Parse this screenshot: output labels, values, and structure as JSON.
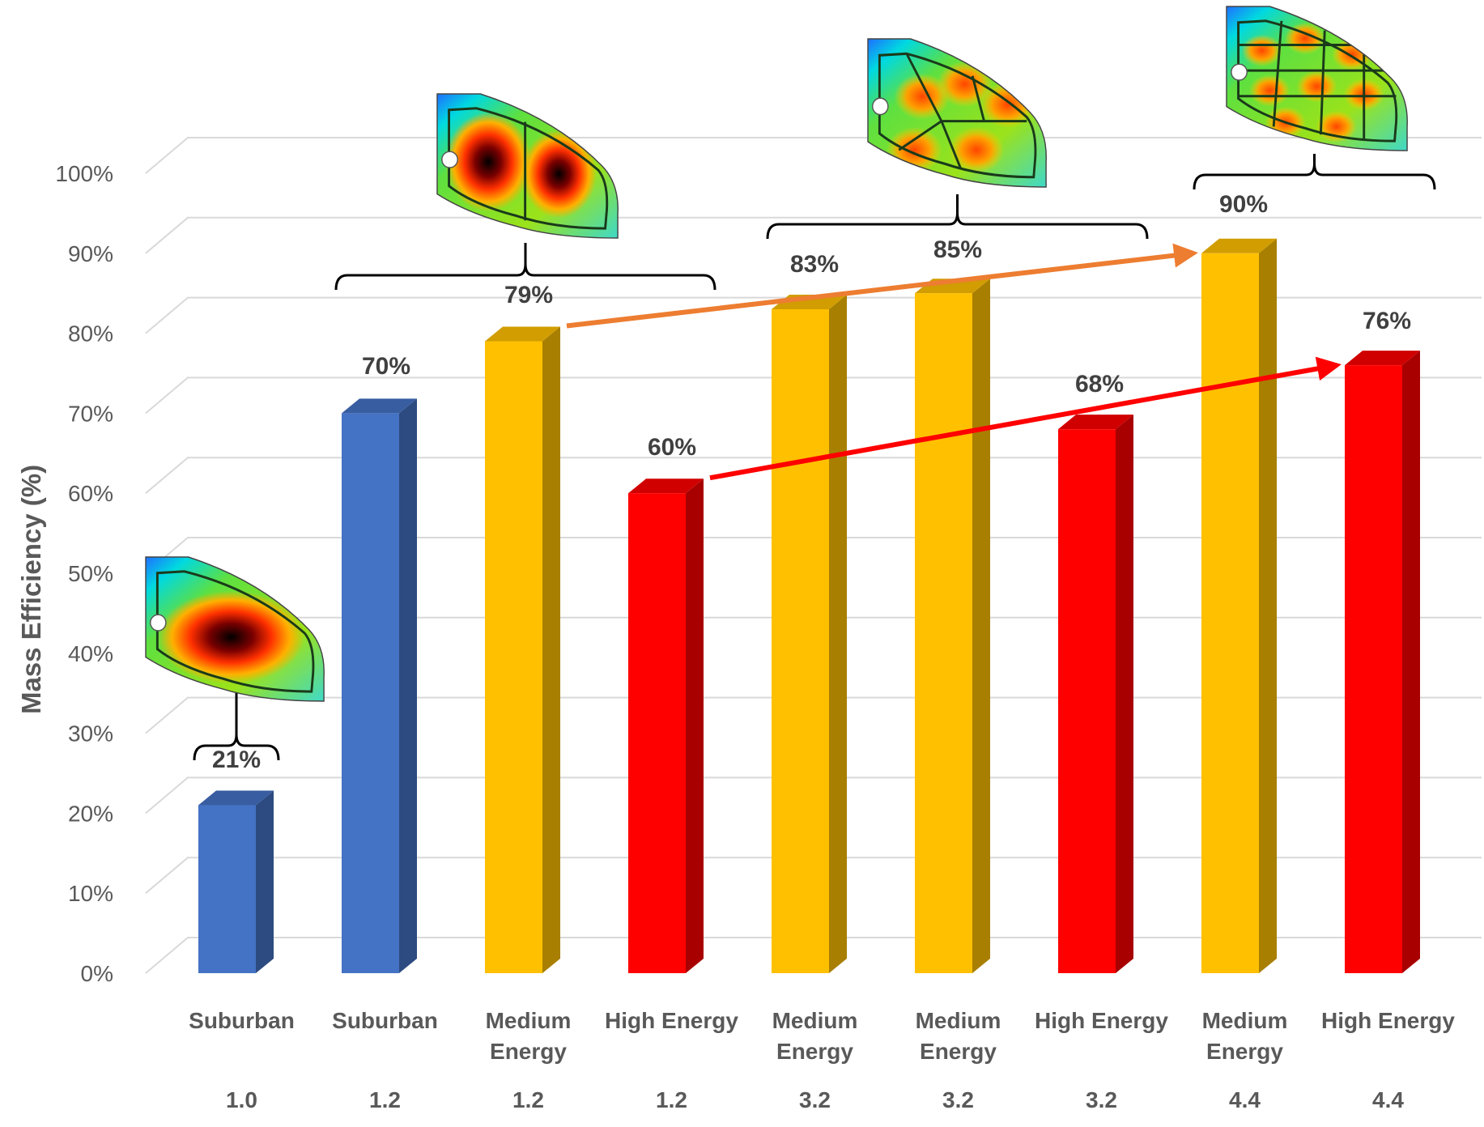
{
  "chart_data": {
    "type": "bar",
    "title": "",
    "ylabel": "Mass Efficiency (%)",
    "xlabel": "",
    "ylim": [
      0,
      100
    ],
    "yticks": [
      "0%",
      "10%",
      "20%",
      "30%",
      "40%",
      "50%",
      "60%",
      "70%",
      "80%",
      "90%",
      "100%"
    ],
    "grid": true,
    "bar_style": "3d-column",
    "categories": [
      {
        "name": "Suburban",
        "sub": "1.0"
      },
      {
        "name": "Suburban",
        "sub": "1.2"
      },
      {
        "name": "Medium Energy",
        "sub": "1.2"
      },
      {
        "name": "High Energy",
        "sub": "1.2"
      },
      {
        "name": "Medium Energy",
        "sub": "3.2"
      },
      {
        "name": "Medium Energy",
        "sub": "3.2"
      },
      {
        "name": "High Energy",
        "sub": "3.2"
      },
      {
        "name": "Medium Energy",
        "sub": "4.4"
      },
      {
        "name": "High Energy",
        "sub": "4.4"
      }
    ],
    "values": [
      21,
      70,
      79,
      60,
      83,
      85,
      68,
      90,
      76
    ],
    "data_labels": [
      "21%",
      "70%",
      "79%",
      "60%",
      "83%",
      "85%",
      "68%",
      "90%",
      "76%"
    ],
    "bar_colors": [
      "#4472c4",
      "#4472c4",
      "#ffc000",
      "#ff0000",
      "#ffc000",
      "#ffc000",
      "#ff0000",
      "#ffc000",
      "#ff0000"
    ],
    "group_brackets": [
      {
        "from": 0,
        "to": 0,
        "label_index": 0
      },
      {
        "from": 1,
        "to": 3,
        "label_index": 2
      },
      {
        "from": 4,
        "to": 6,
        "label_index": 5
      },
      {
        "from": 7,
        "to": 8,
        "label_index": 7
      }
    ],
    "trend_arrows": [
      {
        "from": 2,
        "to": 7,
        "color": "#ed7d31"
      },
      {
        "from": 3,
        "to": 8,
        "color": "#ff0000"
      }
    ],
    "inset_images": [
      {
        "kind": "stress-contour-plate",
        "ribs": "single-frame"
      },
      {
        "kind": "stress-contour-plate",
        "ribs": "two-cells"
      },
      {
        "kind": "stress-contour-plate",
        "ribs": "five-cells"
      },
      {
        "kind": "stress-contour-plate",
        "ribs": "grid-cells"
      }
    ]
  }
}
